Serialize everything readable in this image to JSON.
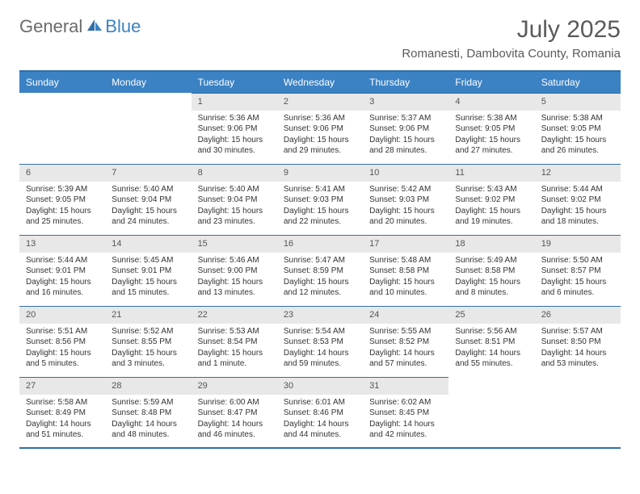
{
  "logo": {
    "part1": "General",
    "part2": "Blue"
  },
  "title": "July 2025",
  "location": "Romanesti, Dambovita County, Romania",
  "colors": {
    "header_bg": "#3b82c4",
    "header_text": "#ffffff",
    "border": "#2f6fa8",
    "daynum_bg": "#e8e8e8",
    "text": "#333333",
    "logo_gray": "#6b6b6b",
    "logo_blue": "#3b82c4"
  },
  "day_names": [
    "Sunday",
    "Monday",
    "Tuesday",
    "Wednesday",
    "Thursday",
    "Friday",
    "Saturday"
  ],
  "weeks": [
    [
      null,
      null,
      {
        "n": "1",
        "sr": "5:36 AM",
        "ss": "9:06 PM",
        "dl": "15 hours and 30 minutes."
      },
      {
        "n": "2",
        "sr": "5:36 AM",
        "ss": "9:06 PM",
        "dl": "15 hours and 29 minutes."
      },
      {
        "n": "3",
        "sr": "5:37 AM",
        "ss": "9:06 PM",
        "dl": "15 hours and 28 minutes."
      },
      {
        "n": "4",
        "sr": "5:38 AM",
        "ss": "9:05 PM",
        "dl": "15 hours and 27 minutes."
      },
      {
        "n": "5",
        "sr": "5:38 AM",
        "ss": "9:05 PM",
        "dl": "15 hours and 26 minutes."
      }
    ],
    [
      {
        "n": "6",
        "sr": "5:39 AM",
        "ss": "9:05 PM",
        "dl": "15 hours and 25 minutes."
      },
      {
        "n": "7",
        "sr": "5:40 AM",
        "ss": "9:04 PM",
        "dl": "15 hours and 24 minutes."
      },
      {
        "n": "8",
        "sr": "5:40 AM",
        "ss": "9:04 PM",
        "dl": "15 hours and 23 minutes."
      },
      {
        "n": "9",
        "sr": "5:41 AM",
        "ss": "9:03 PM",
        "dl": "15 hours and 22 minutes."
      },
      {
        "n": "10",
        "sr": "5:42 AM",
        "ss": "9:03 PM",
        "dl": "15 hours and 20 minutes."
      },
      {
        "n": "11",
        "sr": "5:43 AM",
        "ss": "9:02 PM",
        "dl": "15 hours and 19 minutes."
      },
      {
        "n": "12",
        "sr": "5:44 AM",
        "ss": "9:02 PM",
        "dl": "15 hours and 18 minutes."
      }
    ],
    [
      {
        "n": "13",
        "sr": "5:44 AM",
        "ss": "9:01 PM",
        "dl": "15 hours and 16 minutes."
      },
      {
        "n": "14",
        "sr": "5:45 AM",
        "ss": "9:01 PM",
        "dl": "15 hours and 15 minutes."
      },
      {
        "n": "15",
        "sr": "5:46 AM",
        "ss": "9:00 PM",
        "dl": "15 hours and 13 minutes."
      },
      {
        "n": "16",
        "sr": "5:47 AM",
        "ss": "8:59 PM",
        "dl": "15 hours and 12 minutes."
      },
      {
        "n": "17",
        "sr": "5:48 AM",
        "ss": "8:58 PM",
        "dl": "15 hours and 10 minutes."
      },
      {
        "n": "18",
        "sr": "5:49 AM",
        "ss": "8:58 PM",
        "dl": "15 hours and 8 minutes."
      },
      {
        "n": "19",
        "sr": "5:50 AM",
        "ss": "8:57 PM",
        "dl": "15 hours and 6 minutes."
      }
    ],
    [
      {
        "n": "20",
        "sr": "5:51 AM",
        "ss": "8:56 PM",
        "dl": "15 hours and 5 minutes."
      },
      {
        "n": "21",
        "sr": "5:52 AM",
        "ss": "8:55 PM",
        "dl": "15 hours and 3 minutes."
      },
      {
        "n": "22",
        "sr": "5:53 AM",
        "ss": "8:54 PM",
        "dl": "15 hours and 1 minute."
      },
      {
        "n": "23",
        "sr": "5:54 AM",
        "ss": "8:53 PM",
        "dl": "14 hours and 59 minutes."
      },
      {
        "n": "24",
        "sr": "5:55 AM",
        "ss": "8:52 PM",
        "dl": "14 hours and 57 minutes."
      },
      {
        "n": "25",
        "sr": "5:56 AM",
        "ss": "8:51 PM",
        "dl": "14 hours and 55 minutes."
      },
      {
        "n": "26",
        "sr": "5:57 AM",
        "ss": "8:50 PM",
        "dl": "14 hours and 53 minutes."
      }
    ],
    [
      {
        "n": "27",
        "sr": "5:58 AM",
        "ss": "8:49 PM",
        "dl": "14 hours and 51 minutes."
      },
      {
        "n": "28",
        "sr": "5:59 AM",
        "ss": "8:48 PM",
        "dl": "14 hours and 48 minutes."
      },
      {
        "n": "29",
        "sr": "6:00 AM",
        "ss": "8:47 PM",
        "dl": "14 hours and 46 minutes."
      },
      {
        "n": "30",
        "sr": "6:01 AM",
        "ss": "8:46 PM",
        "dl": "14 hours and 44 minutes."
      },
      {
        "n": "31",
        "sr": "6:02 AM",
        "ss": "8:45 PM",
        "dl": "14 hours and 42 minutes."
      },
      null,
      null
    ]
  ],
  "labels": {
    "sunrise": "Sunrise:",
    "sunset": "Sunset:",
    "daylight": "Daylight:"
  }
}
